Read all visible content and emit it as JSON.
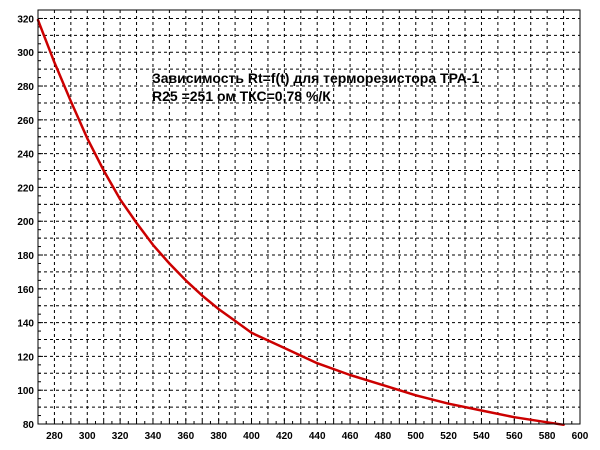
{
  "chart_data": {
    "type": "line",
    "title": "Зависимость Rt=f(t) для терморезистора ТРА-1",
    "subtitle": "R25 =251 ом ТКС=0,78 %/К",
    "xlabel": "",
    "ylabel": "",
    "xlim": [
      270,
      600
    ],
    "ylim": [
      80,
      325
    ],
    "grid": true,
    "x_ticks": [
      "280",
      "300",
      "320",
      "340",
      "360",
      "380",
      "400",
      "420",
      "440",
      "460",
      "480",
      "500",
      "520",
      "540",
      "560",
      "580",
      "600"
    ],
    "y_ticks": [
      "80",
      "100",
      "120",
      "140",
      "160",
      "180",
      "200",
      "220",
      "240",
      "260",
      "280",
      "300",
      "320"
    ],
    "series": [
      {
        "color": "#cc0000",
        "x": [
          270,
          280,
          290,
          300,
          310,
          320,
          330,
          340,
          350,
          360,
          370,
          380,
          390,
          400,
          420,
          440,
          460,
          480,
          500,
          520,
          540,
          560,
          580,
          590
        ],
        "y": [
          319,
          294,
          271,
          249,
          230,
          213,
          199,
          186,
          175,
          165,
          156,
          148,
          141,
          134,
          125,
          116,
          109,
          103,
          97,
          92,
          88,
          84,
          81,
          79.5
        ]
      }
    ]
  }
}
